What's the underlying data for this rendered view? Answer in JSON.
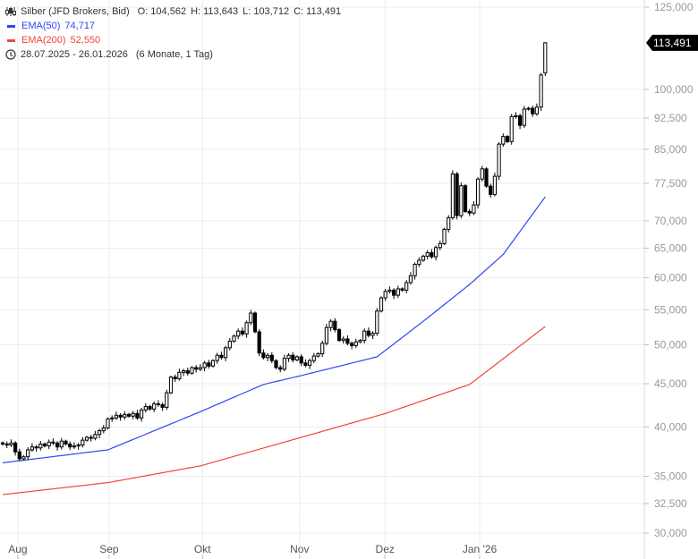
{
  "legend": {
    "instrument": "Silber (JFD Brokers, Bid)",
    "open": "O: 104,562",
    "high": "H: 113,643",
    "low": "L: 103,712",
    "close": "C: 113,491",
    "ema50_label": "EMA(50)",
    "ema50_value": "74,717",
    "ema200_label": "EMA(200)",
    "ema200_value": "52,550",
    "range": "28.07.2025 - 26.01.2026",
    "period": "(6 Monate, 1 Tag)"
  },
  "colors": {
    "ema50": "#2c45f5",
    "ema200": "#f0453a",
    "candle": "#000000",
    "grid": "#ececec",
    "axis_text": "#999999"
  },
  "chart_data": {
    "type": "candlestick",
    "title": "Silber (JFD Brokers, Bid)",
    "yscale": "log",
    "ylim": [
      28.5,
      128
    ],
    "y_ticks": [
      {
        "v": 125,
        "label": "125,000"
      },
      {
        "v": 100,
        "label": "100,000"
      },
      {
        "v": 92.5,
        "label": "92,500"
      },
      {
        "v": 85,
        "label": "85,000"
      },
      {
        "v": 77.5,
        "label": "77,500"
      },
      {
        "v": 70,
        "label": "70,000"
      },
      {
        "v": 65,
        "label": "65,000"
      },
      {
        "v": 60,
        "label": "60,000"
      },
      {
        "v": 55,
        "label": "55,000"
      },
      {
        "v": 50,
        "label": "50,000"
      },
      {
        "v": 45,
        "label": "45,000"
      },
      {
        "v": 40,
        "label": "40,000"
      },
      {
        "v": 35,
        "label": "35,000"
      },
      {
        "v": 32.5,
        "label": "32,500"
      },
      {
        "v": 30,
        "label": "30,000"
      }
    ],
    "x_ticks": [
      {
        "day": 3.6,
        "label": "Aug"
      },
      {
        "day": 25.3,
        "label": "Sep"
      },
      {
        "day": 47.5,
        "label": "Okt"
      },
      {
        "day": 70.6,
        "label": "Nov"
      },
      {
        "day": 90.9,
        "label": "Dez"
      },
      {
        "day": 113.4,
        "label": "Jan '26"
      }
    ],
    "last_price_label": "113,491",
    "last_open": 104.562,
    "last_high": 113.643,
    "last_low": 103.712,
    "closes": [
      38.2,
      38.1,
      38.3,
      37.4,
      36.7,
      36.9,
      37.6,
      37.9,
      37.8,
      38.2,
      38.0,
      38.4,
      38.3,
      37.9,
      38.5,
      38.2,
      37.9,
      38.0,
      38.1,
      38.6,
      38.9,
      38.8,
      39.2,
      39.6,
      39.9,
      40.9,
      41.0,
      41.3,
      41.1,
      41.4,
      41.2,
      41.5,
      41.0,
      41.9,
      42.3,
      42.0,
      42.6,
      42.5,
      42.2,
      43.9,
      45.8,
      45.6,
      46.4,
      46.6,
      46.3,
      47.0,
      46.8,
      47.0,
      47.6,
      47.2,
      47.9,
      48.6,
      48.3,
      49.6,
      50.5,
      51.2,
      51.9,
      51.5,
      53.1,
      54.5,
      51.8,
      48.9,
      48.3,
      48.6,
      47.9,
      47.0,
      46.8,
      48.2,
      48.6,
      48.0,
      48.4,
      47.6,
      47.3,
      47.9,
      48.5,
      48.8,
      50.2,
      52.4,
      53.3,
      52.1,
      50.6,
      50.8,
      50.2,
      49.9,
      50.4,
      50.6,
      51.9,
      51.3,
      51.6,
      54.8,
      56.8,
      57.8,
      58.0,
      57.2,
      58.2,
      58.0,
      59.2,
      60.3,
      62.2,
      62.9,
      63.6,
      64.2,
      63.5,
      65.1,
      65.8,
      68.4,
      70.6,
      79.5,
      71.0,
      77.0,
      71.8,
      71.5,
      73.1,
      78.4,
      80.6,
      76.9,
      75.2,
      79.0,
      86.2,
      88.0,
      86.8,
      92.9,
      93.1,
      90.7,
      94.8,
      95.0,
      93.6,
      95.3,
      104.0,
      113.491
    ],
    "series": [
      {
        "name": "EMA(50)",
        "days": [
          0,
          25,
          47,
          62,
          71,
          89,
          100,
          111,
          119,
          129
        ],
        "values": [
          36.3,
          37.6,
          41.7,
          44.9,
          46.0,
          48.4,
          53.3,
          58.9,
          63.9,
          74.717
        ]
      },
      {
        "name": "EMA(200)",
        "days": [
          0,
          25,
          47,
          71,
          91,
          111,
          129
        ],
        "values": [
          33.3,
          34.4,
          36.0,
          38.9,
          41.5,
          44.9,
          52.55
        ]
      }
    ]
  }
}
